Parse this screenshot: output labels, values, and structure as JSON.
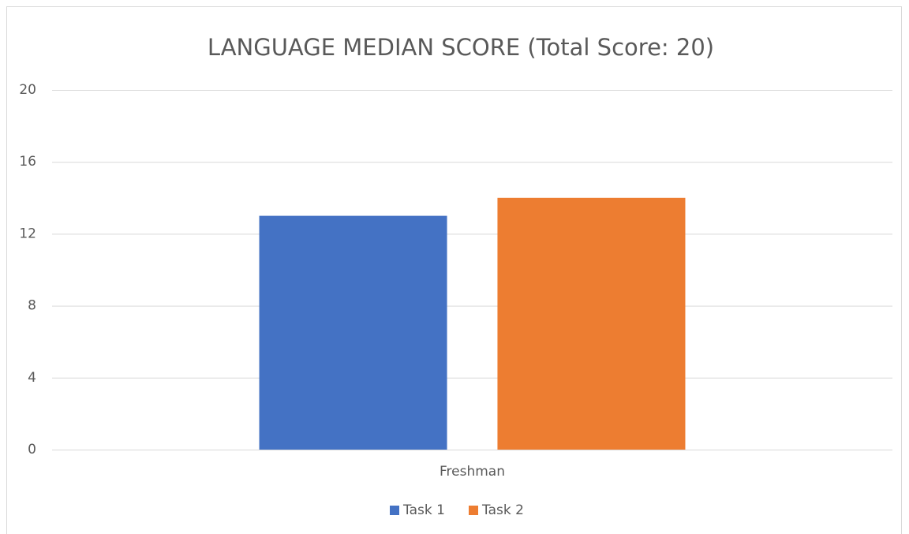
{
  "chart_data": {
    "type": "bar",
    "title": "LANGUAGE MEDIAN SCORE (Total Score: 20)",
    "categories": [
      "Freshman"
    ],
    "series": [
      {
        "name": "Task 1",
        "color": "#4472c4",
        "values": [
          13
        ]
      },
      {
        "name": "Task 2",
        "color": "#ed7d31",
        "values": [
          14
        ]
      }
    ],
    "ylim": [
      0,
      20
    ],
    "yticks": [
      0,
      4,
      8,
      12,
      16,
      20
    ],
    "grid": true,
    "legend": "bottom"
  }
}
